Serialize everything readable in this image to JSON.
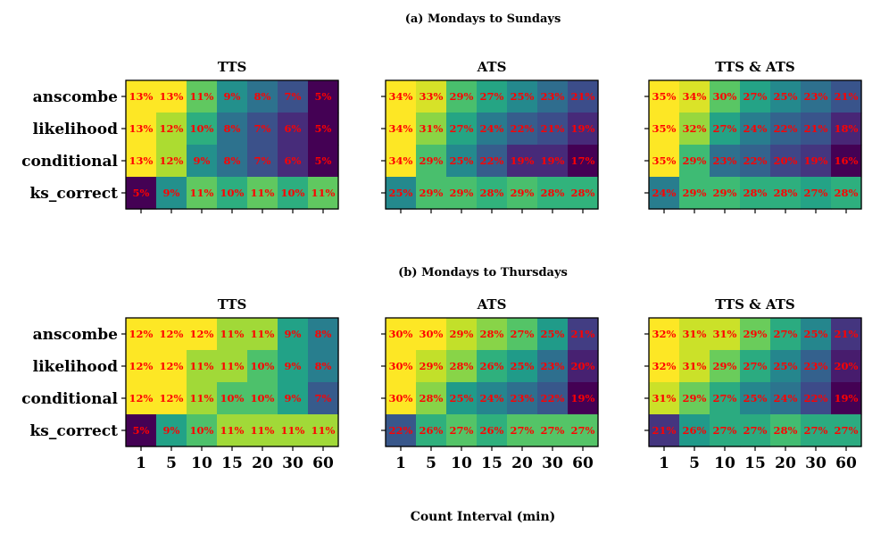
{
  "chart_data": {
    "type": "heatmap",
    "xlabel": "Count Interval (min)",
    "x_categories": [
      "1",
      "5",
      "10",
      "15",
      "20",
      "30",
      "60"
    ],
    "y_categories": [
      "anscombe",
      "likelihood",
      "conditional",
      "ks_correct"
    ],
    "annotation_color": "#ff0000",
    "colormap": "viridis",
    "sections": [
      {
        "title": "(a) Mondays to Sundays",
        "panels": [
          {
            "title": "TTS",
            "values": [
              [
                13,
                13,
                11,
                9,
                8,
                7,
                5
              ],
              [
                13,
                12,
                10,
                8,
                7,
                6,
                5
              ],
              [
                13,
                12,
                9,
                8,
                7,
                6,
                5
              ],
              [
                5,
                9,
                11,
                10,
                11,
                10,
                11
              ]
            ],
            "labels": [
              [
                "13%",
                "13%",
                "11%",
                "9%",
                "8%",
                "7%",
                "5%"
              ],
              [
                "13%",
                "12%",
                "10%",
                "8%",
                "7%",
                "6%",
                "5%"
              ],
              [
                "13%",
                "12%",
                "9%",
                "8%",
                "7%",
                "6%",
                "5%"
              ],
              [
                "5%",
                "9%",
                "11%",
                "10%",
                "11%",
                "10%",
                "11%"
              ]
            ]
          },
          {
            "title": "ATS",
            "values": [
              [
                34,
                33,
                29,
                27,
                25,
                23,
                21
              ],
              [
                34,
                31,
                27,
                24,
                22,
                21,
                19
              ],
              [
                34,
                29,
                25,
                22,
                19,
                19,
                17
              ],
              [
                25,
                29,
                29,
                28,
                29,
                28,
                28
              ]
            ],
            "labels": [
              [
                "34%",
                "33%",
                "29%",
                "27%",
                "25%",
                "23%",
                "21%"
              ],
              [
                "34%",
                "31%",
                "27%",
                "24%",
                "22%",
                "21%",
                "19%"
              ],
              [
                "34%",
                "29%",
                "25%",
                "22%",
                "19%",
                "19%",
                "17%"
              ],
              [
                "25%",
                "29%",
                "29%",
                "28%",
                "29%",
                "28%",
                "28%"
              ]
            ]
          },
          {
            "title": "TTS & ATS",
            "values": [
              [
                35,
                34,
                30,
                27,
                25,
                23,
                21
              ],
              [
                35,
                32,
                27,
                24,
                22,
                21,
                18
              ],
              [
                35,
                29,
                23,
                22,
                20,
                19,
                16
              ],
              [
                24,
                29,
                29,
                28,
                28,
                27,
                28
              ]
            ],
            "labels": [
              [
                "35%",
                "34%",
                "30%",
                "27%",
                "25%",
                "23%",
                "21%"
              ],
              [
                "35%",
                "32%",
                "27%",
                "24%",
                "22%",
                "21%",
                "18%"
              ],
              [
                "35%",
                "29%",
                "23%",
                "22%",
                "20%",
                "19%",
                "16%"
              ],
              [
                "24%",
                "29%",
                "29%",
                "28%",
                "28%",
                "27%",
                "28%"
              ]
            ]
          }
        ]
      },
      {
        "title": "(b) Mondays to Thursdays",
        "panels": [
          {
            "title": "TTS",
            "values": [
              [
                12,
                12,
                12,
                11,
                11,
                9,
                8
              ],
              [
                12,
                12,
                11,
                11,
                10,
                9,
                8
              ],
              [
                12,
                12,
                11,
                10,
                10,
                9,
                7
              ],
              [
                5,
                9,
                10,
                11,
                11,
                11,
                11
              ]
            ],
            "labels": [
              [
                "12%",
                "12%",
                "12%",
                "11%",
                "11%",
                "9%",
                "8%"
              ],
              [
                "12%",
                "12%",
                "11%",
                "11%",
                "10%",
                "9%",
                "8%"
              ],
              [
                "12%",
                "12%",
                "11%",
                "10%",
                "10%",
                "9%",
                "7%"
              ],
              [
                "5%",
                "9%",
                "10%",
                "11%",
                "11%",
                "11%",
                "11%"
              ]
            ]
          },
          {
            "title": "ATS",
            "values": [
              [
                30,
                30,
                29,
                28,
                27,
                25,
                21
              ],
              [
                30,
                29,
                28,
                26,
                25,
                23,
                20
              ],
              [
                30,
                28,
                25,
                24,
                23,
                22,
                19
              ],
              [
                22,
                26,
                27,
                26,
                27,
                27,
                27
              ]
            ],
            "labels": [
              [
                "30%",
                "30%",
                "29%",
                "28%",
                "27%",
                "25%",
                "21%"
              ],
              [
                "30%",
                "29%",
                "28%",
                "26%",
                "25%",
                "23%",
                "20%"
              ],
              [
                "30%",
                "28%",
                "25%",
                "24%",
                "23%",
                "22%",
                "19%"
              ],
              [
                "22%",
                "26%",
                "27%",
                "26%",
                "27%",
                "27%",
                "27%"
              ]
            ]
          },
          {
            "title": "TTS & ATS",
            "values": [
              [
                32,
                31,
                31,
                29,
                27,
                25,
                21
              ],
              [
                32,
                31,
                29,
                27,
                25,
                23,
                20
              ],
              [
                31,
                29,
                27,
                25,
                24,
                22,
                19
              ],
              [
                21,
                26,
                27,
                27,
                28,
                27,
                27
              ]
            ],
            "labels": [
              [
                "32%",
                "31%",
                "31%",
                "29%",
                "27%",
                "25%",
                "21%"
              ],
              [
                "32%",
                "31%",
                "29%",
                "27%",
                "25%",
                "23%",
                "20%"
              ],
              [
                "31%",
                "29%",
                "27%",
                "25%",
                "24%",
                "22%",
                "19%"
              ],
              [
                "21%",
                "26%",
                "27%",
                "27%",
                "28%",
                "27%",
                "27%"
              ]
            ]
          }
        ]
      }
    ]
  }
}
